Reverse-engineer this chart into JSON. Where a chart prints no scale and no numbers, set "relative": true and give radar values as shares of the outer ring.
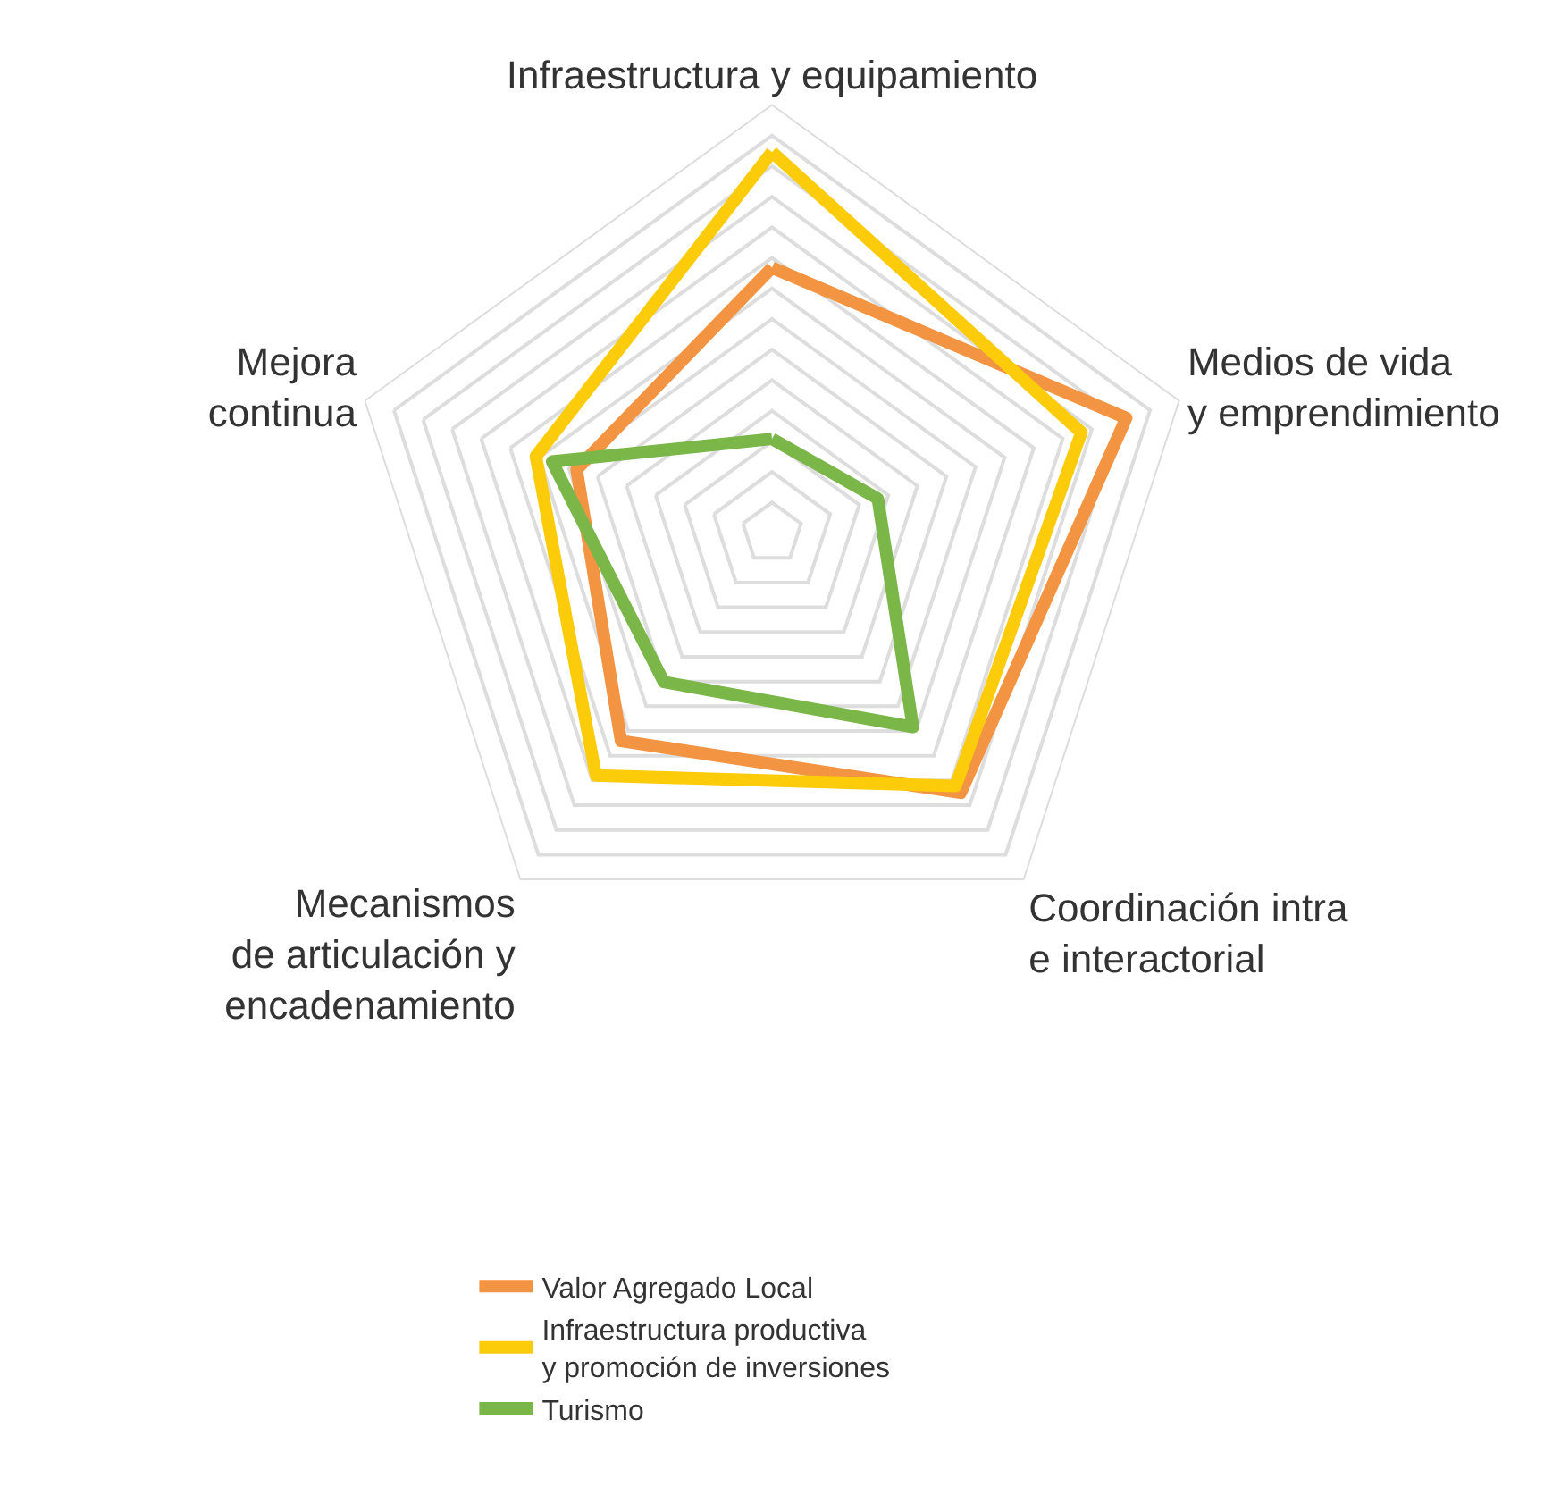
{
  "chart_data": {
    "type": "radar",
    "relative": true,
    "grid": true,
    "legend": "bottom",
    "marker": "none",
    "line_style": "solid",
    "categories": [
      "Infraestructura y equipamiento",
      "Medios de vida\ny emprendimiento",
      "Coordinación intra\ne interactorial",
      "Mecanismos\nde articulación y\nencadenamiento",
      "Mejora\ncontinua"
    ],
    "series": [
      {
        "name": "Valor Agregado Local",
        "color": "#f39443",
        "values": [
          0.62,
          0.87,
          0.75,
          0.6,
          0.48
        ]
      },
      {
        "name": "Infraestructura productiva\ny promoción de inversiones",
        "color": "#fccb0a",
        "values": [
          0.89,
          0.76,
          0.73,
          0.7,
          0.58
        ]
      },
      {
        "name": "Turismo",
        "color": "#7ab648",
        "values": [
          0.22,
          0.26,
          0.56,
          0.43,
          0.54
        ]
      }
    ]
  }
}
